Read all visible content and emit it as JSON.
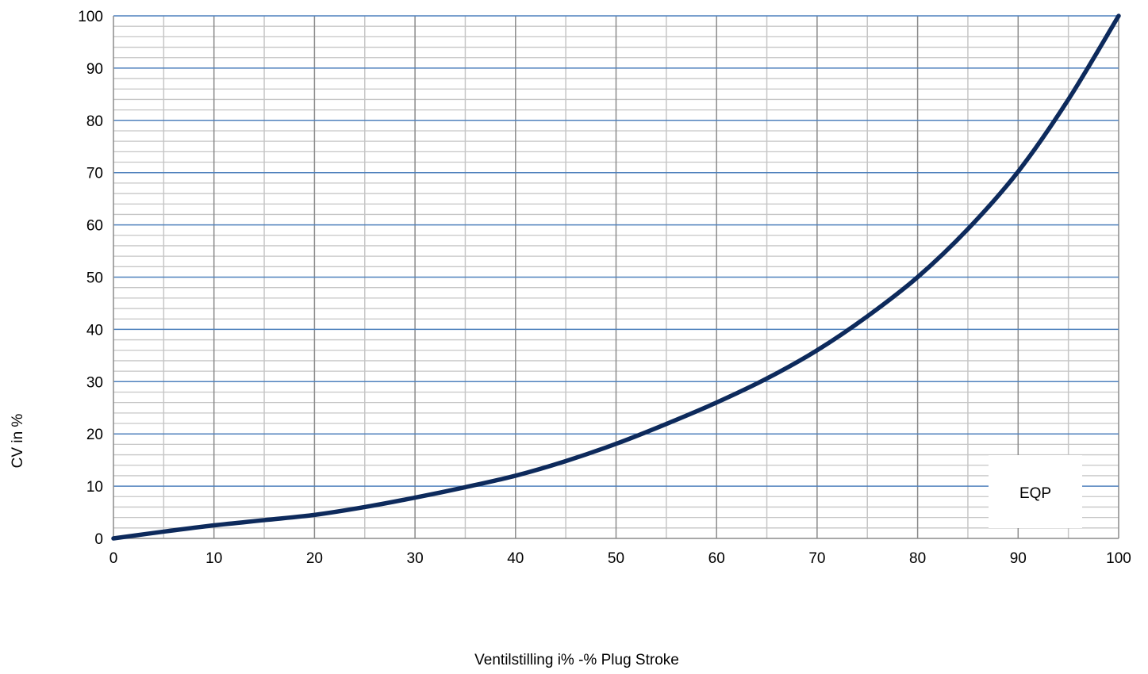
{
  "chart_data": {
    "type": "line",
    "title": "",
    "xlabel": "Ventilstilling i% -% Plug Stroke",
    "ylabel": "CV in %",
    "xlim": [
      0,
      100
    ],
    "ylim": [
      0,
      100
    ],
    "x_ticks": [
      "0",
      "10",
      "20",
      "30",
      "40",
      "50",
      "60",
      "70",
      "80",
      "90",
      "100"
    ],
    "y_ticks": [
      "0",
      "10",
      "20",
      "30",
      "40",
      "50",
      "60",
      "70",
      "80",
      "90",
      "100"
    ],
    "grid": true,
    "legend_position": "bottom-right",
    "series": [
      {
        "name": "EQP",
        "color": "#0d2a5c",
        "x": [
          0,
          5,
          10,
          15,
          20,
          25,
          30,
          35,
          40,
          45,
          50,
          55,
          60,
          65,
          70,
          75,
          80,
          85,
          90,
          95,
          100
        ],
        "y": [
          0,
          1.3,
          2.5,
          3.5,
          4.5,
          6.0,
          7.8,
          9.8,
          12.0,
          14.8,
          18.1,
          21.9,
          26.0,
          30.6,
          36.0,
          42.5,
          50.0,
          59.2,
          70.2,
          84.0,
          100.0
        ]
      }
    ]
  }
}
